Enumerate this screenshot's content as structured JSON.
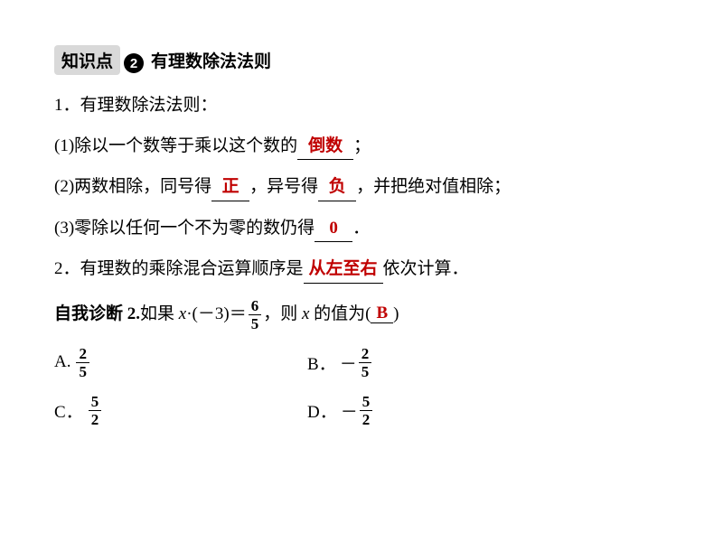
{
  "header": {
    "badge_text": "知识点",
    "circle_num": "2",
    "title": "有理数除法法则"
  },
  "lines": {
    "l1_prefix": "1．有理数除法法则：",
    "l2_pre": "(1)除以一个数等于乘以这个数的",
    "l2_blank": "倒数",
    "l2_post": "；",
    "l3_pre": "(2)两数相除，同号得",
    "l3_b1": "正",
    "l3_mid": "，异号得",
    "l3_b2": "负",
    "l3_post": "，并把绝对值相除；",
    "l4_pre": "(3)零除以任何一个不为零的数仍得",
    "l4_blank": "0",
    "l4_post": "．",
    "l5_pre": "2．有理数的乘除混合运算顺序是",
    "l5_blank": "从左至右",
    "l5_post": "依次计算．",
    "q_stem_bold": "自我诊断 2.",
    "q_pre": "如果 ",
    "q_var": "x",
    "q_mid1": "·(－3)＝",
    "q_frac_num": "6",
    "q_frac_den": "5",
    "q_mid2": "，则 ",
    "q_var2": "x",
    "q_post": " 的值为(",
    "q_ans": "B",
    "q_close": ")"
  },
  "choices": {
    "a_label": "A.",
    "a_num": "2",
    "a_den": "5",
    "b_label": "B．",
    "b_neg": "－",
    "b_num": "2",
    "b_den": "5",
    "c_label": "C．",
    "c_num": "5",
    "c_den": "2",
    "d_label": "D．",
    "d_neg": "－",
    "d_num": "5",
    "d_den": "2"
  },
  "colors": {
    "answer": "#c00000",
    "text": "#000000",
    "badge_bg": "#d9d9d9"
  }
}
